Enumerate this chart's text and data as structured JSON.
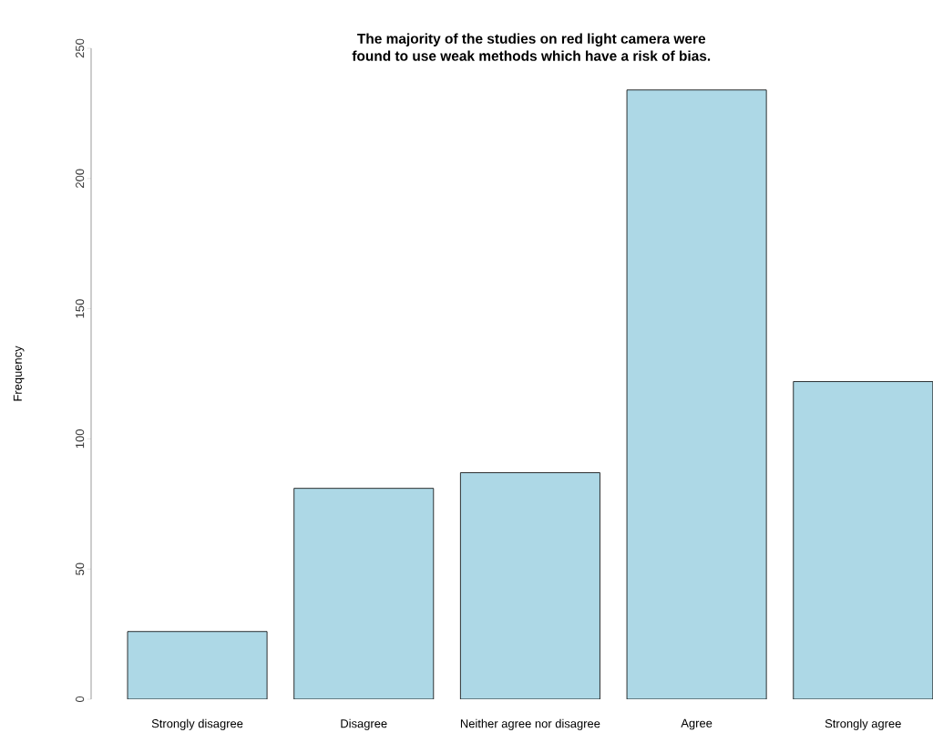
{
  "chart_data": {
    "type": "bar",
    "title": "The majority of the studies on red light camera were\nfound to use weak methods which have a risk of bias.",
    "ylabel": "Frequency",
    "categories": [
      "Strongly disagree",
      "Disagree",
      "Neither agree nor disagree",
      "Agree",
      "Strongly agree"
    ],
    "values": [
      26,
      81,
      87,
      234,
      122
    ],
    "color": "#add8e6",
    "ylim": [
      0,
      250
    ],
    "yticks": [
      0,
      50,
      100,
      150,
      200,
      250
    ]
  }
}
